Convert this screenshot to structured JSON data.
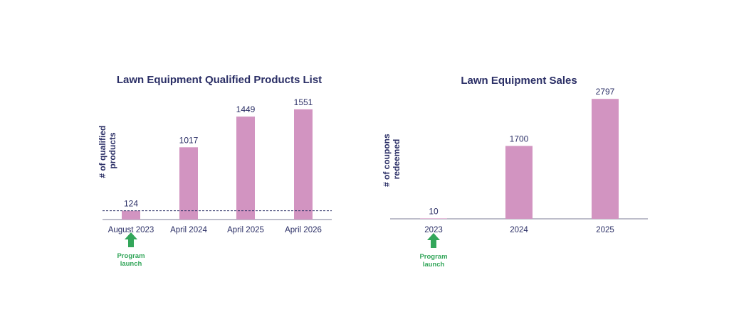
{
  "colors": {
    "bar": "#d294c1",
    "text": "#2b2f66",
    "axis": "#7b7b96",
    "baseline_dash": "#2b2f66",
    "annotation": "#33a65a"
  },
  "chart_data": [
    {
      "type": "bar",
      "title": "Lawn Equipment Qualified Products List",
      "ylabel_lines": [
        "# of qualified",
        "products"
      ],
      "xlabel": "",
      "categories": [
        "August 2023",
        "April 2024",
        "April 2025",
        "April 2026"
      ],
      "values": [
        124,
        1017,
        1449,
        1551
      ],
      "data_labels": [
        "124",
        "1017",
        "1449",
        "1551"
      ],
      "ylim": [
        0,
        1750
      ],
      "grid": false,
      "baseline_reference": 124,
      "annotation": {
        "category": "August 2023",
        "icon": "up-arrow-icon",
        "lines": [
          "Program",
          "launch"
        ]
      }
    },
    {
      "type": "bar",
      "title": "Lawn Equipment Sales",
      "ylabel_lines": [
        "# of coupons",
        "redeemed"
      ],
      "xlabel": "",
      "categories": [
        "2023",
        "2024",
        "2025"
      ],
      "values": [
        10,
        1700,
        2797
      ],
      "data_labels": [
        "10",
        "1700",
        "2797"
      ],
      "ylim": [
        0,
        2900
      ],
      "grid": false,
      "annotation": {
        "category": "2023",
        "icon": "up-arrow-icon",
        "lines": [
          "Program",
          "launch"
        ]
      }
    }
  ]
}
